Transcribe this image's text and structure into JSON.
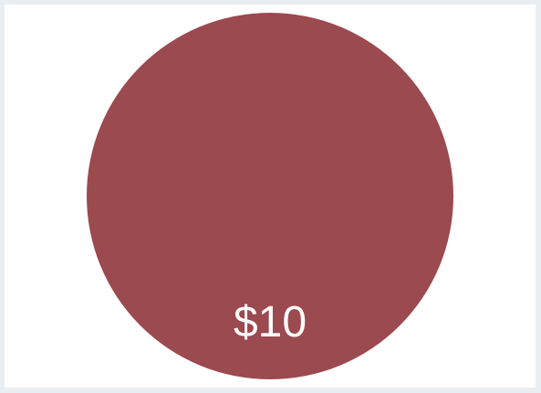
{
  "chart_data": {
    "type": "pie",
    "slices": [
      {
        "value": 10,
        "label": "$10",
        "color": "#9b4a4f"
      }
    ]
  }
}
